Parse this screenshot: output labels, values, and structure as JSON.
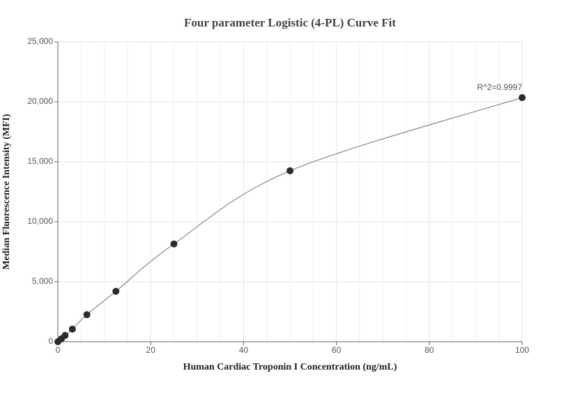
{
  "chart_data": {
    "type": "scatter",
    "title": "Four parameter Logistic (4-PL) Curve Fit",
    "x_label": "Human Cardiac Troponin I Concentration (ng/mL)",
    "y_label": "Median Fluorescence Intensity (MFI)",
    "x": [
      0,
      0.78,
      1.56,
      3.125,
      6.25,
      12.5,
      25,
      50,
      100
    ],
    "series": [
      {
        "color": "#2b2b2b",
        "values": [
          0,
          250,
          520,
          1050,
          2250,
          4200,
          8150,
          14250,
          20350
        ]
      }
    ],
    "curve_color": "#888888",
    "annotation": "R^2=0.9997",
    "xlim": [
      0,
      100
    ],
    "xticks": [
      0,
      20,
      40,
      60,
      80,
      100
    ],
    "ylim": [
      0,
      25000
    ],
    "yticks": [
      0,
      {
        "value": 5000,
        "label": "5,000"
      },
      {
        "value": 10000,
        "label": "10,000"
      },
      {
        "value": 15000,
        "label": "15,000"
      },
      {
        "value": 20000,
        "label": "20,000"
      },
      {
        "value": 25000,
        "label": "25,000"
      }
    ],
    "grid": true
  }
}
